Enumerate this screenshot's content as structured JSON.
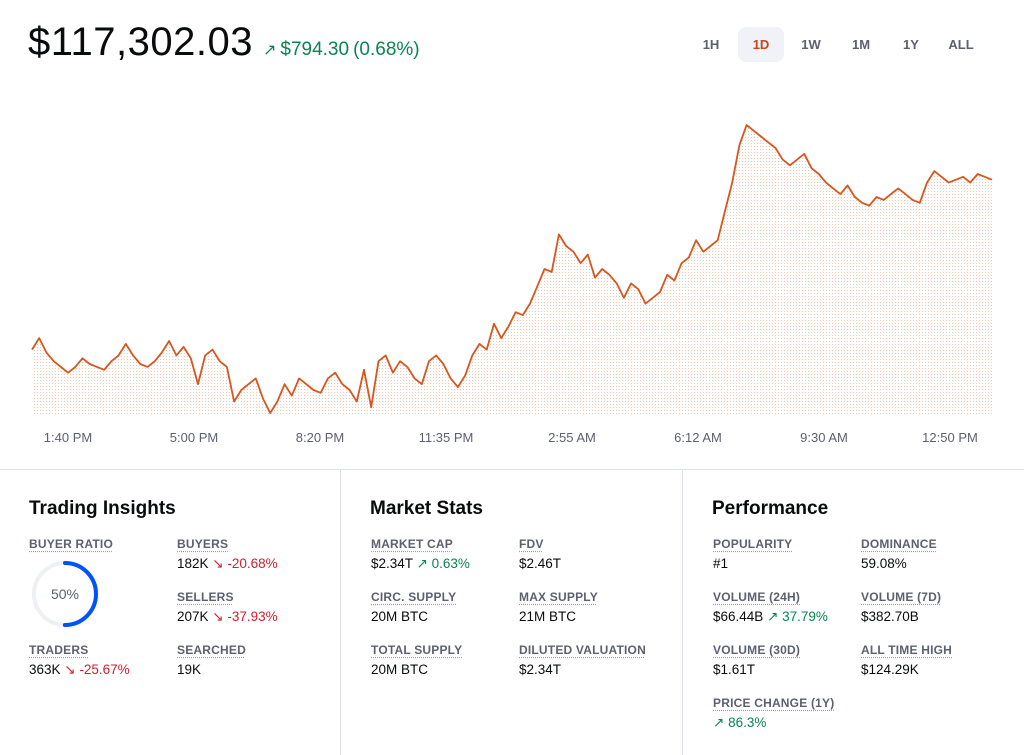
{
  "header": {
    "price": "$117,302.03",
    "change_arrow": "↗",
    "change_amount": "$794.30",
    "change_percent": "(0.68%)"
  },
  "timeframes": [
    {
      "label": "1H",
      "active": false
    },
    {
      "label": "1D",
      "active": true
    },
    {
      "label": "1W",
      "active": false
    },
    {
      "label": "1M",
      "active": false
    },
    {
      "label": "1Y",
      "active": false
    },
    {
      "label": "ALL",
      "active": false
    }
  ],
  "chart_data": {
    "type": "line",
    "x_tick_labels": [
      "1:40 PM",
      "5:00 PM",
      "8:20 PM",
      "11:35 PM",
      "2:55 AM",
      "6:12 AM",
      "9:30 AM",
      "12:50 PM"
    ],
    "line_color": "#d4571f",
    "fill": "dotted",
    "series": [
      {
        "values": [
          0.22,
          0.26,
          0.21,
          0.18,
          0.16,
          0.14,
          0.16,
          0.19,
          0.17,
          0.16,
          0.15,
          0.18,
          0.2,
          0.24,
          0.2,
          0.17,
          0.16,
          0.18,
          0.21,
          0.25,
          0.2,
          0.23,
          0.19,
          0.1,
          0.2,
          0.22,
          0.18,
          0.16,
          0.04,
          0.08,
          0.1,
          0.12,
          0.05,
          0.0,
          0.04,
          0.1,
          0.06,
          0.12,
          0.1,
          0.08,
          0.07,
          0.12,
          0.14,
          0.1,
          0.08,
          0.04,
          0.15,
          0.02,
          0.18,
          0.2,
          0.14,
          0.18,
          0.16,
          0.12,
          0.1,
          0.18,
          0.2,
          0.17,
          0.12,
          0.09,
          0.13,
          0.2,
          0.24,
          0.22,
          0.31,
          0.26,
          0.3,
          0.35,
          0.34,
          0.38,
          0.44,
          0.5,
          0.49,
          0.62,
          0.58,
          0.56,
          0.52,
          0.55,
          0.47,
          0.5,
          0.48,
          0.45,
          0.4,
          0.45,
          0.43,
          0.38,
          0.4,
          0.42,
          0.48,
          0.46,
          0.52,
          0.54,
          0.6,
          0.56,
          0.58,
          0.6,
          0.7,
          0.8,
          0.93,
          1.0,
          0.98,
          0.96,
          0.94,
          0.92,
          0.88,
          0.86,
          0.88,
          0.9,
          0.85,
          0.83,
          0.8,
          0.78,
          0.76,
          0.79,
          0.75,
          0.73,
          0.72,
          0.75,
          0.74,
          0.76,
          0.78,
          0.76,
          0.74,
          0.73,
          0.8,
          0.84,
          0.82,
          0.8,
          0.81,
          0.82,
          0.8,
          0.83,
          0.82,
          0.81
        ]
      }
    ]
  },
  "trading_insights": {
    "title": "Trading Insights",
    "buyer_ratio": {
      "label": "BUYER RATIO",
      "value": "50%",
      "fraction": 0.5
    },
    "buyers": {
      "label": "BUYERS",
      "value": "182K",
      "arrow": "↘",
      "change": "-20.68%"
    },
    "sellers": {
      "label": "SELLERS",
      "value": "207K",
      "arrow": "↘",
      "change": "-37.93%"
    },
    "traders": {
      "label": "TRADERS",
      "value": "363K",
      "arrow": "↘",
      "change": "-25.67%"
    },
    "searched": {
      "label": "SEARCHED",
      "value": "19K"
    }
  },
  "market_stats": {
    "title": "Market Stats",
    "market_cap": {
      "label": "MARKET CAP",
      "value": "$2.34T",
      "arrow": "↗",
      "change": "0.63%"
    },
    "fdv": {
      "label": "FDV",
      "value": "$2.46T"
    },
    "circ_supply": {
      "label": "CIRC. SUPPLY",
      "value": "20M BTC"
    },
    "max_supply": {
      "label": "MAX SUPPLY",
      "value": "21M BTC"
    },
    "total_supply": {
      "label": "TOTAL SUPPLY",
      "value": "20M BTC"
    },
    "diluted_valuation": {
      "label": "DILUTED VALUATION",
      "value": "$2.34T"
    }
  },
  "performance": {
    "title": "Performance",
    "popularity": {
      "label": "POPULARITY",
      "value": "#1"
    },
    "dominance": {
      "label": "DOMINANCE",
      "value": "59.08%"
    },
    "volume_24h": {
      "label": "VOLUME (24H)",
      "value": "$66.44B",
      "arrow": "↗",
      "change": "37.79%"
    },
    "volume_7d": {
      "label": "VOLUME (7D)",
      "value": "$382.70B"
    },
    "volume_30d": {
      "label": "VOLUME (30D)",
      "value": "$1.61T"
    },
    "all_time_high": {
      "label": "ALL TIME HIGH",
      "value": "$124.29K"
    },
    "price_change_1y": {
      "label": "PRICE CHANGE (1Y)",
      "arrow": "↗",
      "change": "86.3%"
    }
  },
  "colors": {
    "positive": "#098551",
    "negative": "#cf202f",
    "accent": "#d4571f",
    "ring": "#0052ff"
  }
}
